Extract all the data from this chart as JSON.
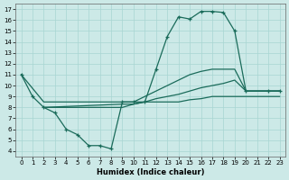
{
  "xlabel": "Humidex (Indice chaleur)",
  "bg_color": "#cce9e7",
  "grid_color": "#a8d5d2",
  "line_color": "#1a6b5a",
  "xlim": [
    -0.5,
    23.5
  ],
  "ylim": [
    3.5,
    17.5
  ],
  "xticks": [
    0,
    1,
    2,
    3,
    4,
    5,
    6,
    7,
    8,
    9,
    10,
    11,
    12,
    13,
    14,
    15,
    16,
    17,
    18,
    19,
    20,
    21,
    22,
    23
  ],
  "yticks": [
    4,
    5,
    6,
    7,
    8,
    9,
    10,
    11,
    12,
    13,
    14,
    15,
    16,
    17
  ],
  "marker_curve_x": [
    0,
    1,
    2,
    3,
    4,
    5,
    6,
    7,
    8,
    9,
    10,
    11,
    12,
    13,
    14,
    15,
    16,
    17,
    18,
    19,
    20,
    22,
    23
  ],
  "marker_curve_y": [
    11,
    9,
    8,
    7.5,
    6,
    5.5,
    4.5,
    4.5,
    4.2,
    8.5,
    8.5,
    8.5,
    11.5,
    14.5,
    16.3,
    16.1,
    16.8,
    16.8,
    16.7,
    15,
    9.5,
    9.5,
    9.5
  ],
  "upper_solid_x": [
    0,
    2,
    9,
    10,
    11,
    12,
    13,
    14,
    15,
    16,
    17,
    18,
    19,
    20,
    22,
    23
  ],
  "upper_solid_y": [
    11,
    8.5,
    8.5,
    8.5,
    9.0,
    9.5,
    10.0,
    10.5,
    11.0,
    11.3,
    11.5,
    11.5,
    11.5,
    9.5,
    9.5,
    9.5
  ],
  "lower_solid_x": [
    2,
    9,
    10,
    11,
    12,
    13,
    14,
    15,
    16,
    17,
    18,
    19,
    20,
    22,
    23
  ],
  "lower_solid_y": [
    8.0,
    8.0,
    8.3,
    8.5,
    8.8,
    9.0,
    9.2,
    9.5,
    9.8,
    10.0,
    10.2,
    10.5,
    9.5,
    9.5,
    9.5
  ],
  "flat_solid_x": [
    2,
    9,
    10,
    11,
    12,
    13,
    14,
    15,
    16,
    17,
    18,
    19,
    20,
    22,
    23
  ],
  "flat_solid_y": [
    8.0,
    8.3,
    8.3,
    8.5,
    8.5,
    8.5,
    8.5,
    8.7,
    8.8,
    9.0,
    9.0,
    9.0,
    9.0,
    9.0,
    9.0
  ]
}
